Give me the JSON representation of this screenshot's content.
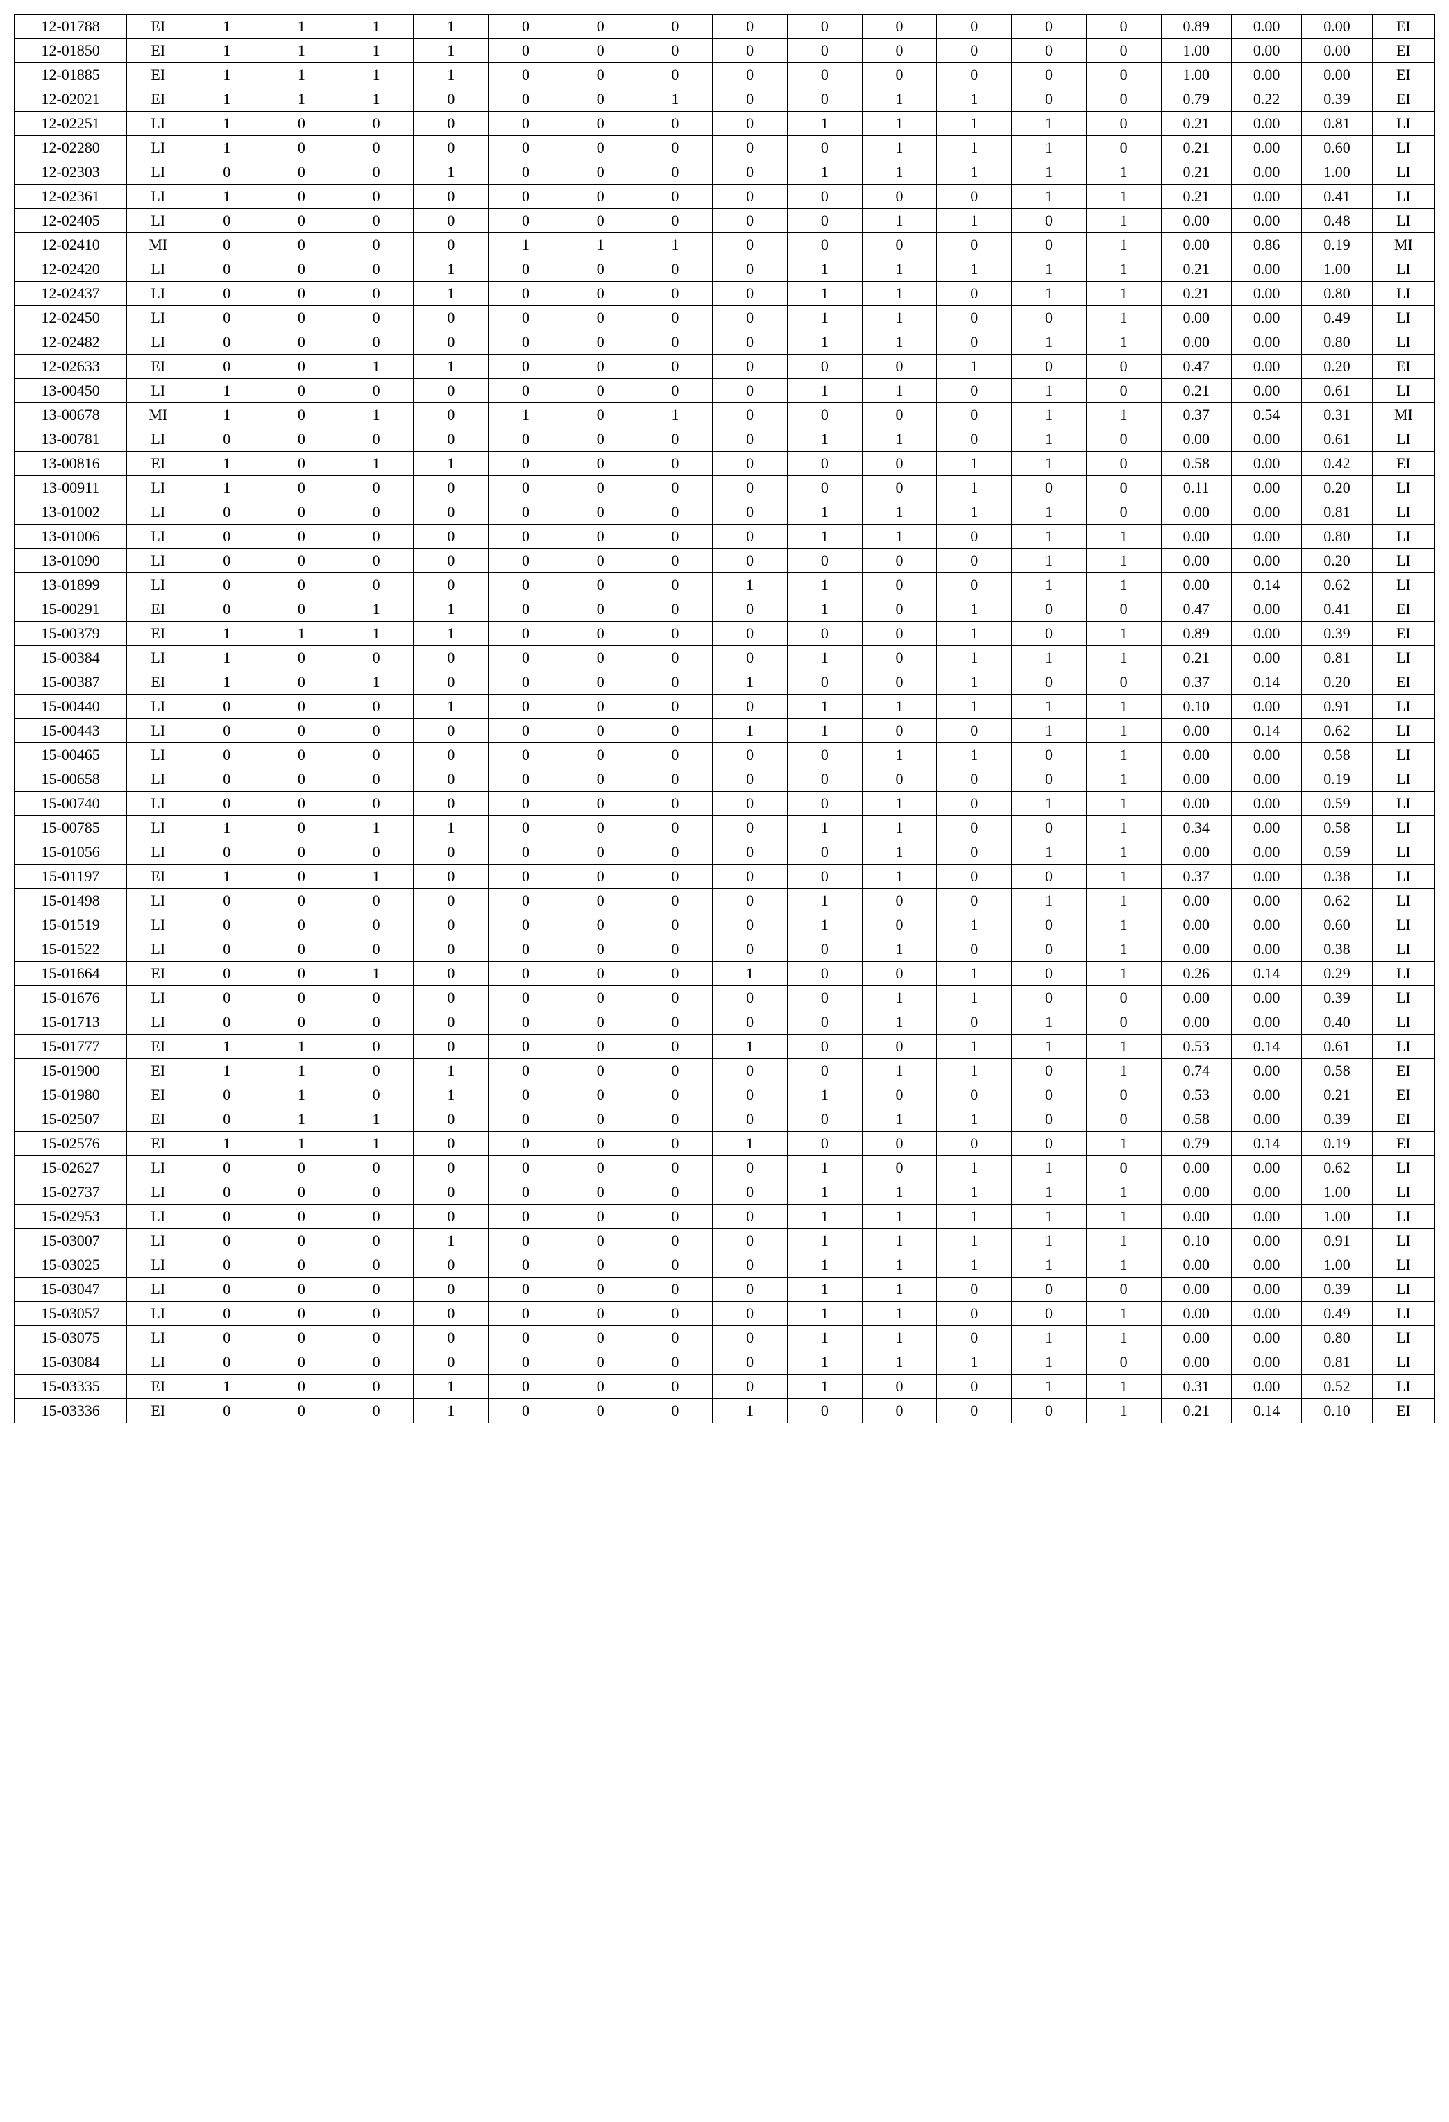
{
  "table": {
    "columns": 19,
    "rows": [
      [
        "12-01788",
        "EI",
        "1",
        "1",
        "1",
        "1",
        "0",
        "0",
        "0",
        "0",
        "0",
        "0",
        "0",
        "0",
        "0",
        "0.89",
        "0.00",
        "0.00",
        "EI"
      ],
      [
        "12-01850",
        "EI",
        "1",
        "1",
        "1",
        "1",
        "0",
        "0",
        "0",
        "0",
        "0",
        "0",
        "0",
        "0",
        "0",
        "1.00",
        "0.00",
        "0.00",
        "EI"
      ],
      [
        "12-01885",
        "EI",
        "1",
        "1",
        "1",
        "1",
        "0",
        "0",
        "0",
        "0",
        "0",
        "0",
        "0",
        "0",
        "0",
        "1.00",
        "0.00",
        "0.00",
        "EI"
      ],
      [
        "12-02021",
        "EI",
        "1",
        "1",
        "1",
        "0",
        "0",
        "0",
        "1",
        "0",
        "0",
        "1",
        "1",
        "0",
        "0",
        "0.79",
        "0.22",
        "0.39",
        "EI"
      ],
      [
        "12-02251",
        "LI",
        "1",
        "0",
        "0",
        "0",
        "0",
        "0",
        "0",
        "0",
        "1",
        "1",
        "1",
        "1",
        "0",
        "0.21",
        "0.00",
        "0.81",
        "LI"
      ],
      [
        "12-02280",
        "LI",
        "1",
        "0",
        "0",
        "0",
        "0",
        "0",
        "0",
        "0",
        "0",
        "1",
        "1",
        "1",
        "0",
        "0.21",
        "0.00",
        "0.60",
        "LI"
      ],
      [
        "12-02303",
        "LI",
        "0",
        "0",
        "0",
        "1",
        "0",
        "0",
        "0",
        "0",
        "1",
        "1",
        "1",
        "1",
        "1",
        "0.21",
        "0.00",
        "1.00",
        "LI"
      ],
      [
        "12-02361",
        "LI",
        "1",
        "0",
        "0",
        "0",
        "0",
        "0",
        "0",
        "0",
        "0",
        "0",
        "0",
        "1",
        "1",
        "0.21",
        "0.00",
        "0.41",
        "LI"
      ],
      [
        "12-02405",
        "LI",
        "0",
        "0",
        "0",
        "0",
        "0",
        "0",
        "0",
        "0",
        "0",
        "1",
        "1",
        "0",
        "1",
        "0.00",
        "0.00",
        "0.48",
        "LI"
      ],
      [
        "12-02410",
        "MI",
        "0",
        "0",
        "0",
        "0",
        "1",
        "1",
        "1",
        "0",
        "0",
        "0",
        "0",
        "0",
        "1",
        "0.00",
        "0.86",
        "0.19",
        "MI"
      ],
      [
        "12-02420",
        "LI",
        "0",
        "0",
        "0",
        "1",
        "0",
        "0",
        "0",
        "0",
        "1",
        "1",
        "1",
        "1",
        "1",
        "0.21",
        "0.00",
        "1.00",
        "LI"
      ],
      [
        "12-02437",
        "LI",
        "0",
        "0",
        "0",
        "1",
        "0",
        "0",
        "0",
        "0",
        "1",
        "1",
        "0",
        "1",
        "1",
        "0.21",
        "0.00",
        "0.80",
        "LI"
      ],
      [
        "12-02450",
        "LI",
        "0",
        "0",
        "0",
        "0",
        "0",
        "0",
        "0",
        "0",
        "1",
        "1",
        "0",
        "0",
        "1",
        "0.00",
        "0.00",
        "0.49",
        "LI"
      ],
      [
        "12-02482",
        "LI",
        "0",
        "0",
        "0",
        "0",
        "0",
        "0",
        "0",
        "0",
        "1",
        "1",
        "0",
        "1",
        "1",
        "0.00",
        "0.00",
        "0.80",
        "LI"
      ],
      [
        "12-02633",
        "EI",
        "0",
        "0",
        "1",
        "1",
        "0",
        "0",
        "0",
        "0",
        "0",
        "0",
        "1",
        "0",
        "0",
        "0.47",
        "0.00",
        "0.20",
        "EI"
      ],
      [
        "13-00450",
        "LI",
        "1",
        "0",
        "0",
        "0",
        "0",
        "0",
        "0",
        "0",
        "1",
        "1",
        "0",
        "1",
        "0",
        "0.21",
        "0.00",
        "0.61",
        "LI"
      ],
      [
        "13-00678",
        "MI",
        "1",
        "0",
        "1",
        "0",
        "1",
        "0",
        "1",
        "0",
        "0",
        "0",
        "0",
        "1",
        "1",
        "0.37",
        "0.54",
        "0.31",
        "MI"
      ],
      [
        "13-00781",
        "LI",
        "0",
        "0",
        "0",
        "0",
        "0",
        "0",
        "0",
        "0",
        "1",
        "1",
        "0",
        "1",
        "0",
        "0.00",
        "0.00",
        "0.61",
        "LI"
      ],
      [
        "13-00816",
        "EI",
        "1",
        "0",
        "1",
        "1",
        "0",
        "0",
        "0",
        "0",
        "0",
        "0",
        "1",
        "1",
        "0",
        "0.58",
        "0.00",
        "0.42",
        "EI"
      ],
      [
        "13-00911",
        "LI",
        "1",
        "0",
        "0",
        "0",
        "0",
        "0",
        "0",
        "0",
        "0",
        "0",
        "1",
        "0",
        "0",
        "0.11",
        "0.00",
        "0.20",
        "LI"
      ],
      [
        "13-01002",
        "LI",
        "0",
        "0",
        "0",
        "0",
        "0",
        "0",
        "0",
        "0",
        "1",
        "1",
        "1",
        "1",
        "0",
        "0.00",
        "0.00",
        "0.81",
        "LI"
      ],
      [
        "13-01006",
        "LI",
        "0",
        "0",
        "0",
        "0",
        "0",
        "0",
        "0",
        "0",
        "1",
        "1",
        "0",
        "1",
        "1",
        "0.00",
        "0.00",
        "0.80",
        "LI"
      ],
      [
        "13-01090",
        "LI",
        "0",
        "0",
        "0",
        "0",
        "0",
        "0",
        "0",
        "0",
        "0",
        "0",
        "0",
        "1",
        "1",
        "0.00",
        "0.00",
        "0.20",
        "LI"
      ],
      [
        "13-01899",
        "LI",
        "0",
        "0",
        "0",
        "0",
        "0",
        "0",
        "0",
        "1",
        "1",
        "0",
        "0",
        "1",
        "1",
        "0.00",
        "0.14",
        "0.62",
        "LI"
      ],
      [
        "15-00291",
        "EI",
        "0",
        "0",
        "1",
        "1",
        "0",
        "0",
        "0",
        "0",
        "1",
        "0",
        "1",
        "0",
        "0",
        "0.47",
        "0.00",
        "0.41",
        "EI"
      ],
      [
        "15-00379",
        "EI",
        "1",
        "1",
        "1",
        "1",
        "0",
        "0",
        "0",
        "0",
        "0",
        "0",
        "1",
        "0",
        "1",
        "0.89",
        "0.00",
        "0.39",
        "EI"
      ],
      [
        "15-00384",
        "LI",
        "1",
        "0",
        "0",
        "0",
        "0",
        "0",
        "0",
        "0",
        "1",
        "0",
        "1",
        "1",
        "1",
        "0.21",
        "0.00",
        "0.81",
        "LI"
      ],
      [
        "15-00387",
        "EI",
        "1",
        "0",
        "1",
        "0",
        "0",
        "0",
        "0",
        "1",
        "0",
        "0",
        "1",
        "0",
        "0",
        "0.37",
        "0.14",
        "0.20",
        "EI"
      ],
      [
        "15-00440",
        "LI",
        "0",
        "0",
        "0",
        "1",
        "0",
        "0",
        "0",
        "0",
        "1",
        "1",
        "1",
        "1",
        "1",
        "0.10",
        "0.00",
        "0.91",
        "LI"
      ],
      [
        "15-00443",
        "LI",
        "0",
        "0",
        "0",
        "0",
        "0",
        "0",
        "0",
        "1",
        "1",
        "0",
        "0",
        "1",
        "1",
        "0.00",
        "0.14",
        "0.62",
        "LI"
      ],
      [
        "15-00465",
        "LI",
        "0",
        "0",
        "0",
        "0",
        "0",
        "0",
        "0",
        "0",
        "0",
        "1",
        "1",
        "0",
        "1",
        "0.00",
        "0.00",
        "0.58",
        "LI"
      ],
      [
        "15-00658",
        "LI",
        "0",
        "0",
        "0",
        "0",
        "0",
        "0",
        "0",
        "0",
        "0",
        "0",
        "0",
        "0",
        "1",
        "0.00",
        "0.00",
        "0.19",
        "LI"
      ],
      [
        "15-00740",
        "LI",
        "0",
        "0",
        "0",
        "0",
        "0",
        "0",
        "0",
        "0",
        "0",
        "1",
        "0",
        "1",
        "1",
        "0.00",
        "0.00",
        "0.59",
        "LI"
      ],
      [
        "15-00785",
        "LI",
        "1",
        "0",
        "1",
        "1",
        "0",
        "0",
        "0",
        "0",
        "1",
        "1",
        "0",
        "0",
        "1",
        "0.34",
        "0.00",
        "0.58",
        "LI"
      ],
      [
        "15-01056",
        "LI",
        "0",
        "0",
        "0",
        "0",
        "0",
        "0",
        "0",
        "0",
        "0",
        "1",
        "0",
        "1",
        "1",
        "0.00",
        "0.00",
        "0.59",
        "LI"
      ],
      [
        "15-01197",
        "EI",
        "1",
        "0",
        "1",
        "0",
        "0",
        "0",
        "0",
        "0",
        "0",
        "1",
        "0",
        "0",
        "1",
        "0.37",
        "0.00",
        "0.38",
        "LI"
      ],
      [
        "15-01498",
        "LI",
        "0",
        "0",
        "0",
        "0",
        "0",
        "0",
        "0",
        "0",
        "1",
        "0",
        "0",
        "1",
        "1",
        "0.00",
        "0.00",
        "0.62",
        "LI"
      ],
      [
        "15-01519",
        "LI",
        "0",
        "0",
        "0",
        "0",
        "0",
        "0",
        "0",
        "0",
        "1",
        "0",
        "1",
        "0",
        "1",
        "0.00",
        "0.00",
        "0.60",
        "LI"
      ],
      [
        "15-01522",
        "LI",
        "0",
        "0",
        "0",
        "0",
        "0",
        "0",
        "0",
        "0",
        "0",
        "1",
        "0",
        "0",
        "1",
        "0.00",
        "0.00",
        "0.38",
        "LI"
      ],
      [
        "15-01664",
        "EI",
        "0",
        "0",
        "1",
        "0",
        "0",
        "0",
        "0",
        "1",
        "0",
        "0",
        "1",
        "0",
        "1",
        "0.26",
        "0.14",
        "0.29",
        "LI"
      ],
      [
        "15-01676",
        "LI",
        "0",
        "0",
        "0",
        "0",
        "0",
        "0",
        "0",
        "0",
        "0",
        "1",
        "1",
        "0",
        "0",
        "0.00",
        "0.00",
        "0.39",
        "LI"
      ],
      [
        "15-01713",
        "LI",
        "0",
        "0",
        "0",
        "0",
        "0",
        "0",
        "0",
        "0",
        "0",
        "1",
        "0",
        "1",
        "0",
        "0.00",
        "0.00",
        "0.40",
        "LI"
      ],
      [
        "15-01777",
        "EI",
        "1",
        "1",
        "0",
        "0",
        "0",
        "0",
        "0",
        "1",
        "0",
        "0",
        "1",
        "1",
        "1",
        "0.53",
        "0.14",
        "0.61",
        "LI"
      ],
      [
        "15-01900",
        "EI",
        "1",
        "1",
        "0",
        "1",
        "0",
        "0",
        "0",
        "0",
        "0",
        "1",
        "1",
        "0",
        "1",
        "0.74",
        "0.00",
        "0.58",
        "EI"
      ],
      [
        "15-01980",
        "EI",
        "0",
        "1",
        "0",
        "1",
        "0",
        "0",
        "0",
        "0",
        "1",
        "0",
        "0",
        "0",
        "0",
        "0.53",
        "0.00",
        "0.21",
        "EI"
      ],
      [
        "15-02507",
        "EI",
        "0",
        "1",
        "1",
        "0",
        "0",
        "0",
        "0",
        "0",
        "0",
        "1",
        "1",
        "0",
        "0",
        "0.58",
        "0.00",
        "0.39",
        "EI"
      ],
      [
        "15-02576",
        "EI",
        "1",
        "1",
        "1",
        "0",
        "0",
        "0",
        "0",
        "1",
        "0",
        "0",
        "0",
        "0",
        "1",
        "0.79",
        "0.14",
        "0.19",
        "EI"
      ],
      [
        "15-02627",
        "LI",
        "0",
        "0",
        "0",
        "0",
        "0",
        "0",
        "0",
        "0",
        "1",
        "0",
        "1",
        "1",
        "0",
        "0.00",
        "0.00",
        "0.62",
        "LI"
      ],
      [
        "15-02737",
        "LI",
        "0",
        "0",
        "0",
        "0",
        "0",
        "0",
        "0",
        "0",
        "1",
        "1",
        "1",
        "1",
        "1",
        "0.00",
        "0.00",
        "1.00",
        "LI"
      ],
      [
        "15-02953",
        "LI",
        "0",
        "0",
        "0",
        "0",
        "0",
        "0",
        "0",
        "0",
        "1",
        "1",
        "1",
        "1",
        "1",
        "0.00",
        "0.00",
        "1.00",
        "LI"
      ],
      [
        "15-03007",
        "LI",
        "0",
        "0",
        "0",
        "1",
        "0",
        "0",
        "0",
        "0",
        "1",
        "1",
        "1",
        "1",
        "1",
        "0.10",
        "0.00",
        "0.91",
        "LI"
      ],
      [
        "15-03025",
        "LI",
        "0",
        "0",
        "0",
        "0",
        "0",
        "0",
        "0",
        "0",
        "1",
        "1",
        "1",
        "1",
        "1",
        "0.00",
        "0.00",
        "1.00",
        "LI"
      ],
      [
        "15-03047",
        "LI",
        "0",
        "0",
        "0",
        "0",
        "0",
        "0",
        "0",
        "0",
        "1",
        "1",
        "0",
        "0",
        "0",
        "0.00",
        "0.00",
        "0.39",
        "LI"
      ],
      [
        "15-03057",
        "LI",
        "0",
        "0",
        "0",
        "0",
        "0",
        "0",
        "0",
        "0",
        "1",
        "1",
        "0",
        "0",
        "1",
        "0.00",
        "0.00",
        "0.49",
        "LI"
      ],
      [
        "15-03075",
        "LI",
        "0",
        "0",
        "0",
        "0",
        "0",
        "0",
        "0",
        "0",
        "1",
        "1",
        "0",
        "1",
        "1",
        "0.00",
        "0.00",
        "0.80",
        "LI"
      ],
      [
        "15-03084",
        "LI",
        "0",
        "0",
        "0",
        "0",
        "0",
        "0",
        "0",
        "0",
        "1",
        "1",
        "1",
        "1",
        "0",
        "0.00",
        "0.00",
        "0.81",
        "LI"
      ],
      [
        "15-03335",
        "EI",
        "1",
        "0",
        "0",
        "1",
        "0",
        "0",
        "0",
        "0",
        "1",
        "0",
        "0",
        "1",
        "1",
        "0.31",
        "0.00",
        "0.52",
        "LI"
      ],
      [
        "15-03336",
        "EI",
        "0",
        "0",
        "0",
        "1",
        "0",
        "0",
        "0",
        "1",
        "0",
        "0",
        "0",
        "0",
        "1",
        "0.21",
        "0.14",
        "0.10",
        "EI"
      ]
    ]
  }
}
